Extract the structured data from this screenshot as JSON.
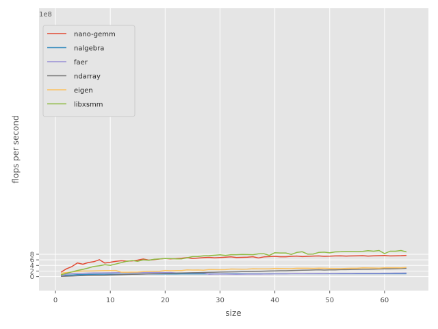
{
  "chart_data": {
    "type": "line",
    "xlabel": "size",
    "ylabel": "flops per second",
    "y_offset_label": "1e8",
    "y_scale_factor": 100000000,
    "xlim": [
      -3,
      68
    ],
    "ylim": [
      -5,
      96
    ],
    "xticks": [
      0,
      10,
      20,
      30,
      40,
      50,
      60
    ],
    "yticks": [
      0,
      2,
      4,
      6,
      8
    ],
    "grid": true,
    "legend_position": "top-left",
    "x": [
      1,
      2,
      3,
      4,
      5,
      6,
      7,
      8,
      9,
      10,
      11,
      12,
      13,
      14,
      15,
      16,
      17,
      18,
      19,
      20,
      21,
      22,
      23,
      24,
      25,
      26,
      27,
      28,
      29,
      30,
      31,
      32,
      33,
      34,
      35,
      36,
      37,
      38,
      39,
      40,
      41,
      42,
      43,
      44,
      45,
      46,
      47,
      48,
      49,
      50,
      51,
      52,
      53,
      54,
      55,
      56,
      57,
      58,
      59,
      60,
      61,
      62,
      63,
      64
    ],
    "series": [
      {
        "name": "nano-gemm",
        "color": "#E24A33",
        "values": [
          1.6,
          2.8,
          3.6,
          4.9,
          4.45,
          5.05,
          5.35,
          6.05,
          4.85,
          5.15,
          5.5,
          5.7,
          5.55,
          5.65,
          5.9,
          6.3,
          5.9,
          6.1,
          6.3,
          6.5,
          6.35,
          6.45,
          6.6,
          6.8,
          6.5,
          6.65,
          6.8,
          6.9,
          6.75,
          6.85,
          6.95,
          7.05,
          6.85,
          6.9,
          6.95,
          7.1,
          6.7,
          7.05,
          7.15,
          7.25,
          7.1,
          7.1,
          7.25,
          7.35,
          7.15,
          7.25,
          7.35,
          7.4,
          7.25,
          7.3,
          7.4,
          7.45,
          7.35,
          7.4,
          7.45,
          7.5,
          7.35,
          7.45,
          7.5,
          7.55,
          7.4,
          7.45,
          7.5,
          7.6
        ]
      },
      {
        "name": "nalgebra",
        "color": "#348ABD",
        "values": [
          0.35,
          0.5,
          0.6,
          0.68,
          0.72,
          0.78,
          0.82,
          0.85,
          0.87,
          0.88,
          0.87,
          0.85,
          0.88,
          0.9,
          0.91,
          0.92,
          0.93,
          0.94,
          0.95,
          0.95,
          0.96,
          0.96,
          0.97,
          0.97,
          0.98,
          0.98,
          0.98,
          0.99,
          0.99,
          0.99,
          1.0,
          1.0,
          1.0,
          1.0,
          1.01,
          1.01,
          1.01,
          1.01,
          1.02,
          1.02,
          1.02,
          1.02,
          1.02,
          1.02,
          1.03,
          1.03,
          1.03,
          1.03,
          1.03,
          1.03,
          1.03,
          1.03,
          1.03,
          1.03,
          1.03,
          1.03,
          1.04,
          1.04,
          1.04,
          1.04,
          1.04,
          1.04,
          1.04,
          1.04
        ]
      },
      {
        "name": "faer",
        "color": "#988ED5",
        "values": [
          0.2,
          0.9,
          1.05,
          1.12,
          1.2,
          1.25,
          1.3,
          1.32,
          1.35,
          1.37,
          1.4,
          1.43,
          1.45,
          1.45,
          1.46,
          1.44,
          1.45,
          1.48,
          1.48,
          1.48,
          1.46,
          1.3,
          1.33,
          1.35,
          1.36,
          1.37,
          1.36,
          0.85,
          0.9,
          0.9,
          0.9,
          0.88,
          0.86,
          0.88,
          0.9,
          0.92,
          0.92,
          0.94,
          0.95,
          1.0,
          1.0,
          1.0,
          1.05,
          1.1,
          1.08,
          1.1,
          1.1,
          1.12,
          1.1,
          1.12,
          1.14,
          1.15,
          1.15,
          1.15,
          1.17,
          1.17,
          1.2,
          1.18,
          1.2,
          1.22,
          1.22,
          1.24,
          1.25,
          1.27
        ]
      },
      {
        "name": "ndarray",
        "color": "#777777",
        "values": [
          0.08,
          0.15,
          0.22,
          0.3,
          0.37,
          0.45,
          0.5,
          0.5,
          0.52,
          0.6,
          0.65,
          0.7,
          0.75,
          0.8,
          0.87,
          0.92,
          0.98,
          1.03,
          1.08,
          1.15,
          1.2,
          1.26,
          1.3,
          1.35,
          1.4,
          1.45,
          1.5,
          1.55,
          1.6,
          1.65,
          1.7,
          1.72,
          1.75,
          1.78,
          1.8,
          1.85,
          1.9,
          1.95,
          2.0,
          2.05,
          2.1,
          2.12,
          2.18,
          2.22,
          2.28,
          2.32,
          2.38,
          2.45,
          2.35,
          2.42,
          2.42,
          2.5,
          2.5,
          2.58,
          2.6,
          2.65,
          2.68,
          2.7,
          2.75,
          2.8,
          2.78,
          2.85,
          2.9,
          3.0
        ]
      },
      {
        "name": "eigen",
        "color": "#FBC15E",
        "values": [
          1.2,
          1.5,
          1.7,
          1.9,
          2.0,
          2.02,
          2.05,
          2.1,
          2.15,
          2.18,
          2.2,
          1.6,
          1.6,
          1.62,
          1.65,
          1.82,
          1.88,
          1.9,
          1.92,
          2.2,
          2.1,
          2.15,
          2.18,
          2.4,
          2.35,
          2.38,
          2.3,
          2.55,
          2.5,
          2.48,
          2.5,
          2.72,
          2.7,
          2.68,
          2.7,
          2.82,
          2.8,
          2.78,
          2.8,
          2.95,
          2.92,
          2.88,
          2.85,
          2.98,
          3.0,
          2.98,
          2.95,
          3.02,
          3.0,
          2.95,
          2.92,
          2.85,
          2.95,
          3.0,
          2.98,
          3.15,
          3.12,
          3.1,
          3.05,
          3.2,
          3.18,
          3.18,
          3.17,
          3.3
        ]
      },
      {
        "name": "libxsmm",
        "color": "#8EBA42",
        "values": [
          0.65,
          1.2,
          1.7,
          2.2,
          2.6,
          3.1,
          3.65,
          3.9,
          4.25,
          4.05,
          4.5,
          5.0,
          5.5,
          5.75,
          5.5,
          6.0,
          5.85,
          6.2,
          6.35,
          6.5,
          6.45,
          6.35,
          6.35,
          6.75,
          7.15,
          7.2,
          7.45,
          7.5,
          7.65,
          7.8,
          7.6,
          7.85,
          7.85,
          7.95,
          7.9,
          7.85,
          8.15,
          8.2,
          7.6,
          8.55,
          8.45,
          8.45,
          7.95,
          8.65,
          8.9,
          8.05,
          8.1,
          8.65,
          8.75,
          8.5,
          8.85,
          8.9,
          9.0,
          9.0,
          8.95,
          9.05,
          9.3,
          9.1,
          9.35,
          8.25,
          9.1,
          9.1,
          9.35,
          8.85
        ]
      }
    ]
  }
}
